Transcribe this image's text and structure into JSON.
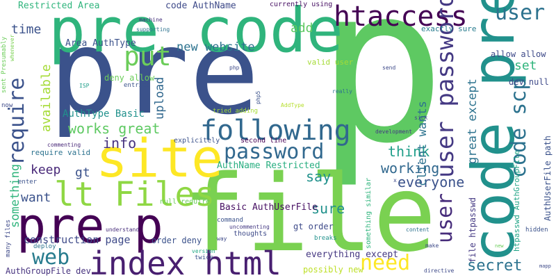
{
  "words": [
    {
      "text": "p",
      "color": "#5ec962"
    },
    {
      "text": "pre",
      "color": "#3b528b"
    },
    {
      "text": "file",
      "color": "#7ad151"
    },
    {
      "text": "pre code",
      "color": "#2fb47c"
    },
    {
      "text": "code pre",
      "color": "#21918c"
    },
    {
      "text": "site",
      "color": "#fde725"
    },
    {
      "text": "pre p",
      "color": "#440154"
    },
    {
      "text": "index html",
      "color": "#481f70"
    },
    {
      "text": "lt Files",
      "color": "#8fd744"
    },
    {
      "text": "htaccess",
      "color": "#440154"
    },
    {
      "text": "following",
      "color": "#31688e"
    },
    {
      "text": "password",
      "color": "#31688e"
    },
    {
      "text": "user password",
      "color": "#443983"
    },
    {
      "text": "user",
      "color": "#2c728e"
    },
    {
      "text": "code scp",
      "color": "#2c728e"
    },
    {
      "text": "user",
      "color": "#472d7b"
    },
    {
      "text": "require",
      "color": "#3b528b"
    },
    {
      "text": "put",
      "color": "#6ccd5a"
    },
    {
      "text": "works great",
      "color": "#5ec962"
    },
    {
      "text": "need",
      "color": "#fde725"
    },
    {
      "text": "web",
      "color": "#287c8e"
    },
    {
      "text": "secret",
      "color": "#2c728e"
    },
    {
      "text": "working",
      "color": "#31688e"
    },
    {
      "text": "everyone",
      "color": "#3b528b"
    },
    {
      "text": "info",
      "color": "#46327e"
    },
    {
      "text": "say",
      "color": "#21918c"
    },
    {
      "text": "sure",
      "color": "#21918c"
    },
    {
      "text": "think",
      "color": "#1f9e89"
    },
    {
      "text": "keep",
      "color": "#482878"
    },
    {
      "text": "gt",
      "color": "#3b528b"
    },
    {
      "text": "want",
      "color": "#3b528b"
    },
    {
      "text": "time",
      "color": "#3b528b"
    },
    {
      "text": "add",
      "color": "#5ec962"
    },
    {
      "text": "new website",
      "color": "#2c728e"
    },
    {
      "text": "set",
      "color": "#2fb47c"
    },
    {
      "text": "upload",
      "color": "#31688e"
    },
    {
      "text": "available",
      "color": "#a5db36"
    },
    {
      "text": "client wants",
      "color": "#2c728e"
    },
    {
      "text": "great except",
      "color": "#2c728e"
    },
    {
      "text": "something",
      "color": "#2fb47c"
    },
    {
      "text": "construction page",
      "color": "#3e4a89"
    },
    {
      "text": "AuthType Basic",
      "color": "#21918c"
    },
    {
      "text": "Area AuthType",
      "color": "#3b528b"
    },
    {
      "text": "code AuthName",
      "color": "#3e4a89"
    },
    {
      "text": "Restricted Area",
      "color": "#2fb47c"
    },
    {
      "text": "AuthName Restricted",
      "color": "#28ae80"
    },
    {
      "text": "Basic AuthUserFile",
      "color": "#471063"
    },
    {
      "text": "everything except",
      "color": "#453781"
    },
    {
      "text": "possibly new",
      "color": "#bddf26"
    },
    {
      "text": "AuthGroupFile dev",
      "color": "#46327e"
    },
    {
      "text": "order deny",
      "color": "#3b528b"
    },
    {
      "text": "gt order",
      "color": "#3e4a89"
    },
    {
      "text": "deny allow",
      "color": "#6ccd5a"
    },
    {
      "text": "allow allow",
      "color": "#3e4a89"
    },
    {
      "text": "dev null",
      "color": "#3e4a89"
    },
    {
      "text": "file htpasswd",
      "color": "#443983"
    },
    {
      "text": "htpasswd AuthGroupFile",
      "color": "#20a486"
    },
    {
      "text": "AuthUserFile path",
      "color": "#3b528b"
    },
    {
      "text": "exactly sure",
      "color": "#287c8e"
    },
    {
      "text": "valid user",
      "color": "#a5db36"
    },
    {
      "text": "currently using",
      "color": "#471063"
    },
    {
      "text": "require valid",
      "color": "#2c728e"
    },
    {
      "text": "null require",
      "color": "#6ccd5a"
    },
    {
      "text": "second line",
      "color": "#440154"
    },
    {
      "text": "explicitely",
      "color": "#3b528b"
    },
    {
      "text": "tried adding",
      "color": "#a5db36"
    },
    {
      "text": "something similar",
      "color": "#2fb47c"
    },
    {
      "text": "uncommenting",
      "color": "#443983"
    },
    {
      "text": "command",
      "color": "#3b528b"
    },
    {
      "text": "thoughts",
      "color": "#3e4a89"
    },
    {
      "text": "breaks",
      "color": "#21918c"
    },
    {
      "text": "many files",
      "color": "#3e4a89"
    },
    {
      "text": "deploy",
      "color": "#2c728e"
    },
    {
      "text": "enter",
      "color": "#3b528b"
    },
    {
      "text": "understand",
      "color": "#472d7b"
    },
    {
      "text": "twice",
      "color": "#3b528b"
    },
    {
      "text": "version",
      "color": "#22a884"
    },
    {
      "text": "way",
      "color": "#3e4a89"
    },
    {
      "text": "sent Presumably",
      "color": "#6ccd5a"
    },
    {
      "text": "whenever",
      "color": "#7ad151"
    },
    {
      "text": "now",
      "color": "#3e4a89"
    },
    {
      "text": "commenting",
      "color": "#482878"
    },
    {
      "text": "machine",
      "color": "#46327e"
    },
    {
      "text": "supporting",
      "color": "#2c728e"
    },
    {
      "text": "ISP",
      "color": "#1f9e89"
    },
    {
      "text": "entries",
      "color": "#3b528b"
    },
    {
      "text": "php",
      "color": "#3e4a89"
    },
    {
      "text": "php5",
      "color": "#3b528b"
    },
    {
      "text": "AddType",
      "color": "#b5de2b"
    },
    {
      "text": "really",
      "color": "#2c728e"
    },
    {
      "text": "send",
      "color": "#3e4a89"
    },
    {
      "text": "development",
      "color": "#443983"
    },
    {
      "text": "sick",
      "color": "#3e4a89"
    },
    {
      "text": "x",
      "color": "#3e4a89"
    },
    {
      "text": "content",
      "color": "#2c728e"
    },
    {
      "text": "make",
      "color": "#3e4a89"
    },
    {
      "text": "hidden",
      "color": "#3b528b"
    },
    {
      "text": "new",
      "color": "#6ccd5a"
    },
    {
      "text": "directive",
      "color": "#3e4a89"
    },
    {
      "text": "mapp",
      "color": "#3e4a89"
    }
  ]
}
